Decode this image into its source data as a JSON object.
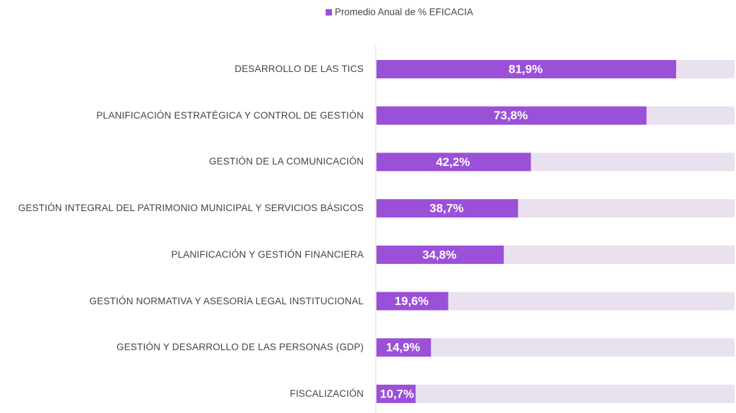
{
  "chart_data": {
    "type": "bar",
    "orientation": "horizontal",
    "categories": [
      "DESARROLLO DE LAS TICS",
      "PLANIFICACIÓN ESTRATÉGICA Y CONTROL DE GESTIÓN",
      "GESTIÓN DE LA COMUNICACIÓN",
      "GESTIÓN INTEGRAL DEL PATRIMONIO MUNICIPAL Y SERVICIOS BÁSICOS",
      "PLANIFICACIÓN Y GESTIÓN FINANCIERA",
      "GESTIÓN NORMATIVA Y ASESORÍA LEGAL INSTITUCIONAL",
      "GESTIÓN Y DESARROLLO DE LAS PERSONAS (GDP)",
      "FISCALIZACIÓN"
    ],
    "series": [
      {
        "name": "Promedio Anual de % EFICACIA",
        "color": "#9b50d8",
        "values": [
          81.9,
          73.8,
          42.2,
          38.7,
          34.8,
          19.6,
          14.9,
          10.7
        ],
        "value_labels": [
          "81,9%",
          "73,8%",
          "42,2%",
          "38,7%",
          "34,8%",
          "19,6%",
          "14,9%",
          "10,7%"
        ]
      }
    ],
    "xlim": [
      0,
      100
    ],
    "legend": "top"
  }
}
